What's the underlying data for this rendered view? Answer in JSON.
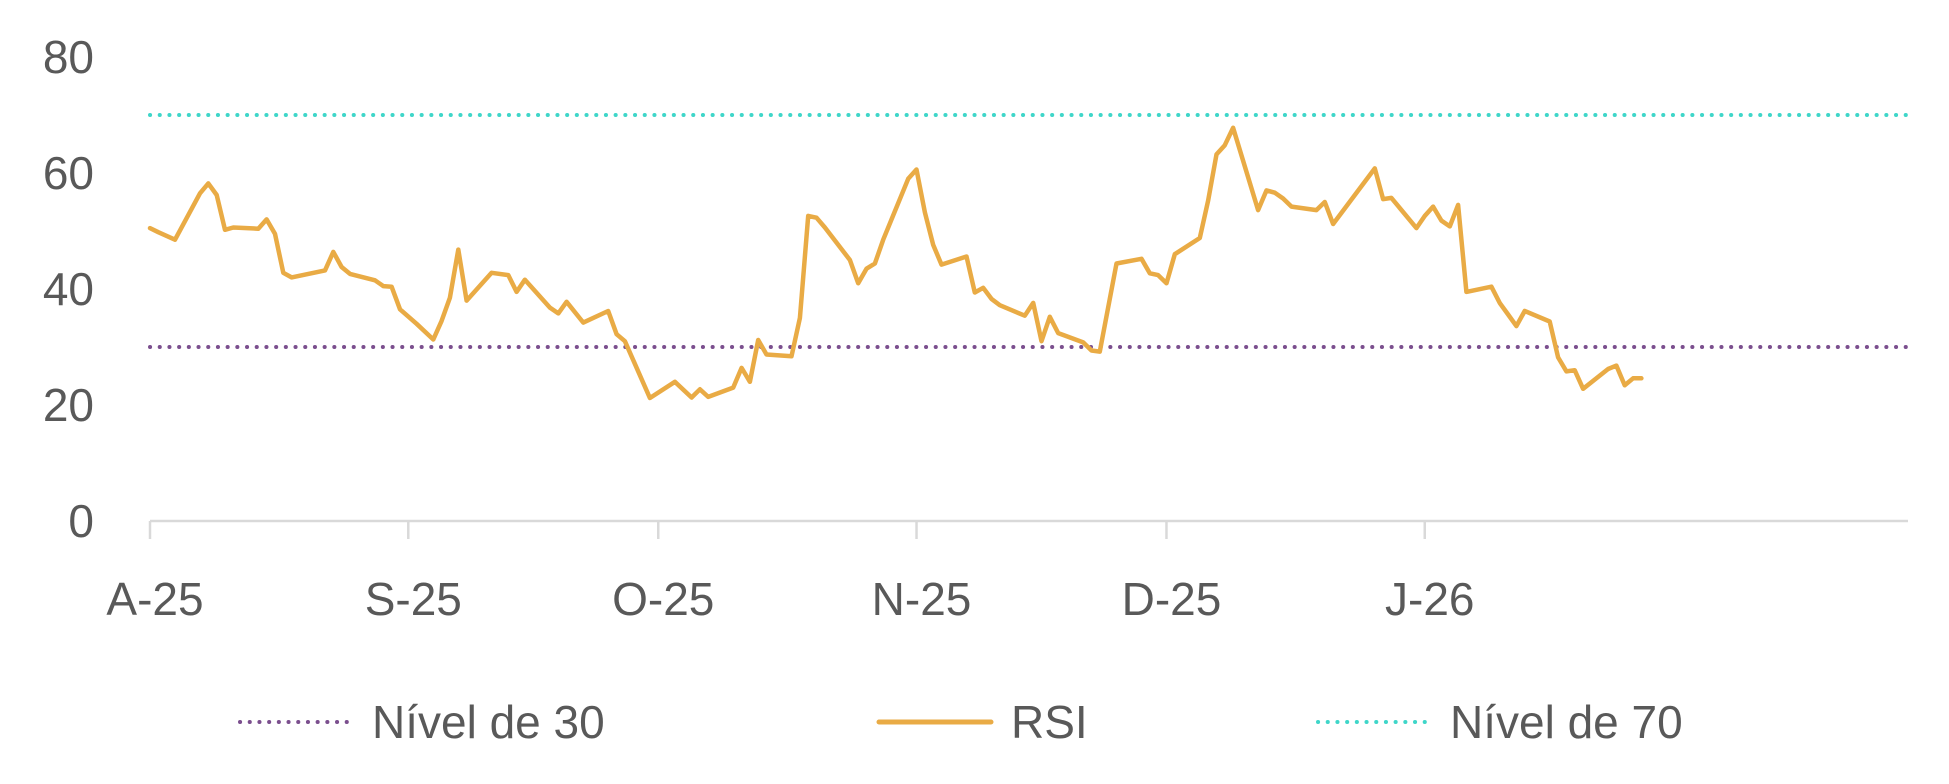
{
  "chart_data": {
    "type": "line",
    "title": "",
    "xlabel": "",
    "ylabel": "",
    "ylim": [
      0,
      80
    ],
    "yticks": [
      "0",
      "20",
      "40",
      "60",
      "80"
    ],
    "xlim": [
      "2025-08-01",
      "2026-02-28"
    ],
    "xticks": [
      {
        "label": "A-25",
        "date": "2025-08-01"
      },
      {
        "label": "S-25",
        "date": "2025-09-01"
      },
      {
        "label": "O-25",
        "date": "2025-10-01"
      },
      {
        "label": "N-25",
        "date": "2025-11-01"
      },
      {
        "label": "D-25",
        "date": "2025-12-01"
      },
      {
        "label": "J-26",
        "date": "2026-01-01"
      }
    ],
    "grid": false,
    "legend_position": "bottom",
    "series": [
      {
        "name": "Nível de 30",
        "color": "#7B4F8E",
        "style": "dotted",
        "points": [
          [
            "2025-08-01",
            30
          ],
          [
            "2026-02-28",
            30
          ]
        ]
      },
      {
        "name": "RSI",
        "color": "#E9AB45",
        "style": "solid",
        "points": [
          [
            "2025-08-01",
            50.5
          ],
          [
            "2025-08-02",
            49.8
          ],
          [
            "2025-08-04",
            48.5
          ],
          [
            "2025-08-07",
            56.5
          ],
          [
            "2025-08-08",
            58.2
          ],
          [
            "2025-08-09",
            56.2
          ],
          [
            "2025-08-10",
            50.2
          ],
          [
            "2025-08-11",
            50.6
          ],
          [
            "2025-08-14",
            50.4
          ],
          [
            "2025-08-15",
            52.0
          ],
          [
            "2025-08-16",
            49.5
          ],
          [
            "2025-08-17",
            42.8
          ],
          [
            "2025-08-18",
            42.0
          ],
          [
            "2025-08-22",
            43.2
          ],
          [
            "2025-08-23",
            46.4
          ],
          [
            "2025-08-24",
            43.8
          ],
          [
            "2025-08-25",
            42.6
          ],
          [
            "2025-08-28",
            41.5
          ],
          [
            "2025-08-29",
            40.5
          ],
          [
            "2025-08-30",
            40.4
          ],
          [
            "2025-08-31",
            36.5
          ],
          [
            "2025-09-02",
            34.0
          ],
          [
            "2025-09-04",
            31.3
          ],
          [
            "2025-09-05",
            34.5
          ],
          [
            "2025-09-06",
            38.5
          ],
          [
            "2025-09-07",
            46.8
          ],
          [
            "2025-09-08",
            38.0
          ],
          [
            "2025-09-11",
            42.8
          ],
          [
            "2025-09-13",
            42.4
          ],
          [
            "2025-09-14",
            39.5
          ],
          [
            "2025-09-15",
            41.6
          ],
          [
            "2025-09-18",
            36.8
          ],
          [
            "2025-09-19",
            35.8
          ],
          [
            "2025-09-20",
            37.8
          ],
          [
            "2025-09-22",
            34.2
          ],
          [
            "2025-09-25",
            36.2
          ],
          [
            "2025-09-26",
            32.2
          ],
          [
            "2025-09-27",
            31.0
          ],
          [
            "2025-09-30",
            21.2
          ],
          [
            "2025-10-03",
            24.0
          ],
          [
            "2025-10-05",
            21.3
          ],
          [
            "2025-10-06",
            22.7
          ],
          [
            "2025-10-07",
            21.4
          ],
          [
            "2025-10-10",
            23.0
          ],
          [
            "2025-10-11",
            26.4
          ],
          [
            "2025-10-12",
            24.0
          ],
          [
            "2025-10-13",
            31.2
          ],
          [
            "2025-10-14",
            28.7
          ],
          [
            "2025-10-17",
            28.4
          ],
          [
            "2025-10-18",
            35.0
          ],
          [
            "2025-10-19",
            52.6
          ],
          [
            "2025-10-20",
            52.3
          ],
          [
            "2025-10-21",
            50.6
          ],
          [
            "2025-10-24",
            45.0
          ],
          [
            "2025-10-25",
            41.0
          ],
          [
            "2025-10-26",
            43.5
          ],
          [
            "2025-10-27",
            44.4
          ],
          [
            "2025-10-28",
            48.5
          ],
          [
            "2025-10-31",
            59.0
          ],
          [
            "2025-11-01",
            60.6
          ],
          [
            "2025-11-02",
            53.2
          ],
          [
            "2025-11-03",
            47.6
          ],
          [
            "2025-11-04",
            44.2
          ],
          [
            "2025-11-07",
            45.6
          ],
          [
            "2025-11-08",
            39.4
          ],
          [
            "2025-11-09",
            40.2
          ],
          [
            "2025-11-10",
            38.3
          ],
          [
            "2025-11-11",
            37.2
          ],
          [
            "2025-11-14",
            35.4
          ],
          [
            "2025-11-15",
            37.6
          ],
          [
            "2025-11-16",
            31.0
          ],
          [
            "2025-11-17",
            35.2
          ],
          [
            "2025-11-18",
            32.4
          ],
          [
            "2025-11-21",
            30.8
          ],
          [
            "2025-11-22",
            29.4
          ],
          [
            "2025-11-23",
            29.2
          ],
          [
            "2025-11-25",
            44.4
          ],
          [
            "2025-11-28",
            45.2
          ],
          [
            "2025-11-29",
            42.7
          ],
          [
            "2025-11-30",
            42.4
          ],
          [
            "2025-12-01",
            41.0
          ],
          [
            "2025-12-02",
            46.0
          ],
          [
            "2025-12-05",
            48.8
          ],
          [
            "2025-12-06",
            55.2
          ],
          [
            "2025-12-07",
            63.2
          ],
          [
            "2025-12-08",
            64.8
          ],
          [
            "2025-12-09",
            67.8
          ],
          [
            "2025-12-12",
            53.6
          ],
          [
            "2025-12-13",
            57.0
          ],
          [
            "2025-12-14",
            56.6
          ],
          [
            "2025-12-15",
            55.6
          ],
          [
            "2025-12-16",
            54.2
          ],
          [
            "2025-12-19",
            53.6
          ],
          [
            "2025-12-20",
            55.0
          ],
          [
            "2025-12-21",
            51.2
          ],
          [
            "2025-12-26",
            60.8
          ],
          [
            "2025-12-27",
            55.5
          ],
          [
            "2025-12-28",
            55.7
          ],
          [
            "2025-12-31",
            50.5
          ],
          [
            "2026-01-01",
            52.6
          ],
          [
            "2026-01-02",
            54.2
          ],
          [
            "2026-01-03",
            51.8
          ],
          [
            "2026-01-04",
            50.8
          ],
          [
            "2026-01-05",
            54.5
          ],
          [
            "2026-01-06",
            39.5
          ],
          [
            "2026-01-09",
            40.4
          ],
          [
            "2026-01-10",
            37.6
          ],
          [
            "2026-01-11",
            35.6
          ],
          [
            "2026-01-12",
            33.6
          ],
          [
            "2026-01-13",
            36.2
          ],
          [
            "2026-01-16",
            34.4
          ],
          [
            "2026-01-17",
            28.2
          ],
          [
            "2026-01-18",
            25.8
          ],
          [
            "2026-01-19",
            26.0
          ],
          [
            "2026-01-20",
            22.8
          ],
          [
            "2026-01-23",
            26.2
          ],
          [
            "2026-01-24",
            26.8
          ],
          [
            "2026-01-25",
            23.4
          ],
          [
            "2026-01-26",
            24.6
          ],
          [
            "2026-01-27",
            24.6
          ]
        ]
      },
      {
        "name": "Nível de 70",
        "color": "#3FD6C9",
        "style": "dotted",
        "points": [
          [
            "2025-08-01",
            70
          ],
          [
            "2026-02-28",
            70
          ]
        ]
      }
    ],
    "legend": [
      {
        "label": "Nível de 30",
        "color": "#7B4F8E",
        "style": "dotted"
      },
      {
        "label": "RSI",
        "color": "#E9AB45",
        "style": "solid"
      },
      {
        "label": "Nível de 70",
        "color": "#3FD6C9",
        "style": "dotted"
      }
    ]
  }
}
